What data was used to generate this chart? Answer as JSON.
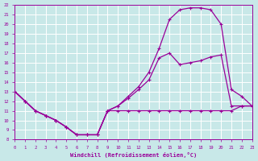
{
  "bg_color": "#c8e8e8",
  "grid_color": "#b0d8d8",
  "line_color": "#990099",
  "xlabel": "Windchill (Refroidissement éolien,°C)",
  "xlim": [
    0,
    23
  ],
  "ylim": [
    8,
    22
  ],
  "xticks": [
    0,
    1,
    2,
    3,
    4,
    5,
    6,
    7,
    8,
    9,
    10,
    11,
    12,
    13,
    14,
    15,
    16,
    17,
    18,
    19,
    20,
    21,
    22,
    23
  ],
  "yticks": [
    8,
    9,
    10,
    11,
    12,
    13,
    14,
    15,
    16,
    17,
    18,
    19,
    20,
    21,
    22
  ],
  "lines": [
    {
      "x": [
        0,
        1,
        2,
        3,
        4,
        5,
        6,
        7,
        8,
        9,
        10,
        11,
        12,
        13,
        14,
        15,
        16,
        17,
        18,
        19,
        20,
        21,
        22,
        23
      ],
      "y": [
        13,
        12,
        11,
        10.5,
        10,
        9.3,
        8.5,
        8.5,
        8.5,
        11,
        11,
        11,
        11,
        11,
        11,
        11,
        11,
        11,
        11,
        11,
        11,
        11,
        11.5,
        11.5
      ]
    },
    {
      "x": [
        0,
        1,
        2,
        3,
        4,
        5,
        6,
        7,
        8,
        9,
        10,
        11,
        12,
        13,
        14,
        15,
        16,
        17,
        18,
        19,
        20,
        21,
        22,
        23
      ],
      "y": [
        13,
        12,
        11,
        10.5,
        10,
        9.3,
        8.5,
        8.5,
        8.5,
        11,
        11.5,
        12.5,
        13.5,
        15,
        17.5,
        20.5,
        21.5,
        21.7,
        21.7,
        21.5,
        20.0,
        13.2,
        12.5,
        11.5
      ]
    },
    {
      "x": [
        0,
        1,
        2,
        3,
        4,
        5,
        6,
        7,
        8,
        9,
        10,
        11,
        12,
        13,
        14,
        15,
        16,
        17,
        18,
        19,
        20,
        21,
        22,
        23
      ],
      "y": [
        13,
        12,
        11,
        10.5,
        10,
        9.3,
        8.5,
        8.5,
        8.5,
        11,
        11.5,
        12.3,
        13.2,
        14.2,
        16.5,
        17.0,
        15.8,
        16.0,
        16.2,
        16.6,
        16.8,
        11.5,
        11.5,
        11.5
      ]
    }
  ]
}
